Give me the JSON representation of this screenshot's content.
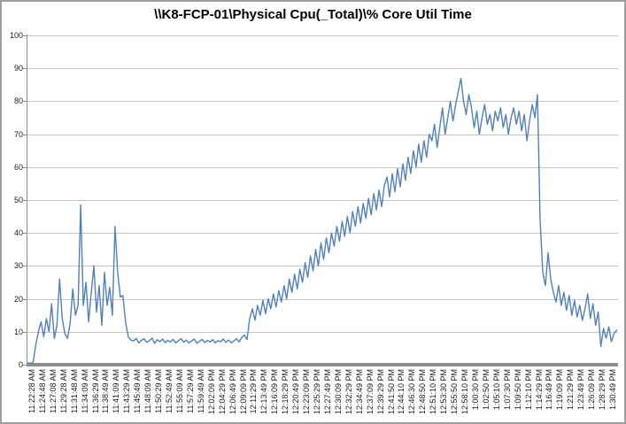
{
  "window": {
    "background": "#ffffff",
    "border_color": "#9e9e9e"
  },
  "chart_data": {
    "type": "line",
    "title": "\\\\K8-FCP-01\\Physical Cpu(_Total)\\% Core Util Time",
    "xlabel": "",
    "ylabel": "",
    "ylim": [
      0,
      100
    ],
    "y_ticks": [
      0,
      10,
      20,
      30,
      40,
      50,
      60,
      70,
      80,
      90,
      100
    ],
    "grid": "horizontal",
    "legend_position": "none",
    "gridline_color": "#c6c6c6",
    "axis_color": "#8e8e8e",
    "tick_label_color": "#1a1a1a",
    "x_tick_labels": [
      "11:22:28 AM",
      "11:24:48 AM",
      "11:27:08 AM",
      "11:29:28 AM",
      "11:31:48 AM",
      "11:34:09 AM",
      "11:36:29 AM",
      "11:38:49 AM",
      "11:41:09 AM",
      "11:43:29 AM",
      "11:45:49 AM",
      "11:48:09 AM",
      "11:50:29 AM",
      "11:52:49 AM",
      "11:55:09 AM",
      "11:57:29 AM",
      "11:59:49 AM",
      "12:02:09 PM",
      "12:04:29 PM",
      "12:06:49 PM",
      "12:09:09 PM",
      "12:11:29 PM",
      "12:13:49 PM",
      "12:16:09 PM",
      "12:18:29 PM",
      "12:20:49 PM",
      "12:23:09 PM",
      "12:25:29 PM",
      "12:27:49 PM",
      "12:30:09 PM",
      "12:32:29 PM",
      "12:34:49 PM",
      "12:37:09 PM",
      "12:39:29 PM",
      "12:41:50 PM",
      "12:44:10 PM",
      "12:46:30 PM",
      "12:48:50 PM",
      "12:51:10 PM",
      "12:53:30 PM",
      "12:55:50 PM",
      "12:58:10 PM",
      "1:00:30 PM",
      "1:02:50 PM",
      "1:05:10 PM",
      "1:07:30 PM",
      "1:09:50 PM",
      "1:12:10 PM",
      "1:14:29 PM",
      "1:16:49 PM",
      "1:19:09 PM",
      "1:21:29 PM",
      "1:23:49 PM",
      "1:26:09 PM",
      "1:28:29 PM",
      "1:30:49 PM"
    ],
    "series": [
      {
        "name": "% Core Util Time",
        "color": "#4F81BD",
        "samples_per_category": 4,
        "values": [
          0.5,
          0.4,
          0.8,
          6,
          10,
          13,
          8.5,
          14,
          10,
          18.5,
          8,
          12,
          26,
          14,
          9.5,
          8,
          12.5,
          23,
          15,
          18,
          48.5,
          18,
          25,
          13,
          22,
          30,
          16,
          24,
          12,
          28,
          18,
          23.5,
          15,
          42,
          28,
          20.5,
          21,
          13,
          8.5,
          7.5,
          7.2,
          8,
          6.6,
          7.4,
          7.9,
          6.8,
          7.3,
          8.1,
          6.5,
          7.6,
          7.0,
          7.8,
          6.7,
          7.4,
          6.9,
          7.7,
          6.6,
          7.3,
          7.9,
          6.8,
          7.5,
          6.6,
          7.2,
          7.8,
          6.5,
          7.1,
          7.7,
          6.7,
          7.4,
          6.9,
          7.6,
          6.6,
          7.3,
          7.0,
          7.8,
          6.8,
          7.5,
          6.7,
          7.2,
          7.9,
          6.9,
          8.3,
          9.0,
          7.6,
          14,
          17,
          13.5,
          18,
          15,
          19.5,
          15.5,
          20,
          17,
          21.5,
          17.5,
          22.5,
          19,
          24,
          20,
          26,
          22,
          27.5,
          23,
          29,
          25,
          31,
          26.5,
          33,
          28.5,
          35,
          30,
          37,
          32,
          38.5,
          34,
          40,
          36,
          42,
          37.5,
          43.5,
          39,
          45,
          40,
          46.5,
          42,
          48,
          43,
          49,
          44.5,
          50.5,
          45.5,
          52,
          47,
          53,
          48,
          54.5,
          57,
          51,
          58,
          52.5,
          59.5,
          54,
          61,
          56,
          63,
          58,
          65,
          60,
          67,
          61.5,
          68,
          63,
          70,
          68,
          73,
          66,
          72,
          78,
          70,
          75,
          80,
          74,
          79,
          83,
          87,
          80,
          76,
          82,
          78,
          72,
          77,
          70,
          75,
          79,
          73,
          76,
          71,
          77,
          74,
          78,
          72,
          76,
          70,
          75,
          78,
          73,
          77,
          71,
          76,
          68,
          74,
          79,
          75,
          82,
          44,
          28,
          24,
          34,
          26,
          22,
          19,
          24,
          18,
          22,
          16.5,
          21,
          15,
          19.5,
          14.5,
          18,
          13.5,
          17,
          21.5,
          14,
          18.5,
          12,
          16,
          5.5,
          11,
          8,
          11.5,
          7,
          9.5,
          10.5
        ]
      }
    ]
  }
}
